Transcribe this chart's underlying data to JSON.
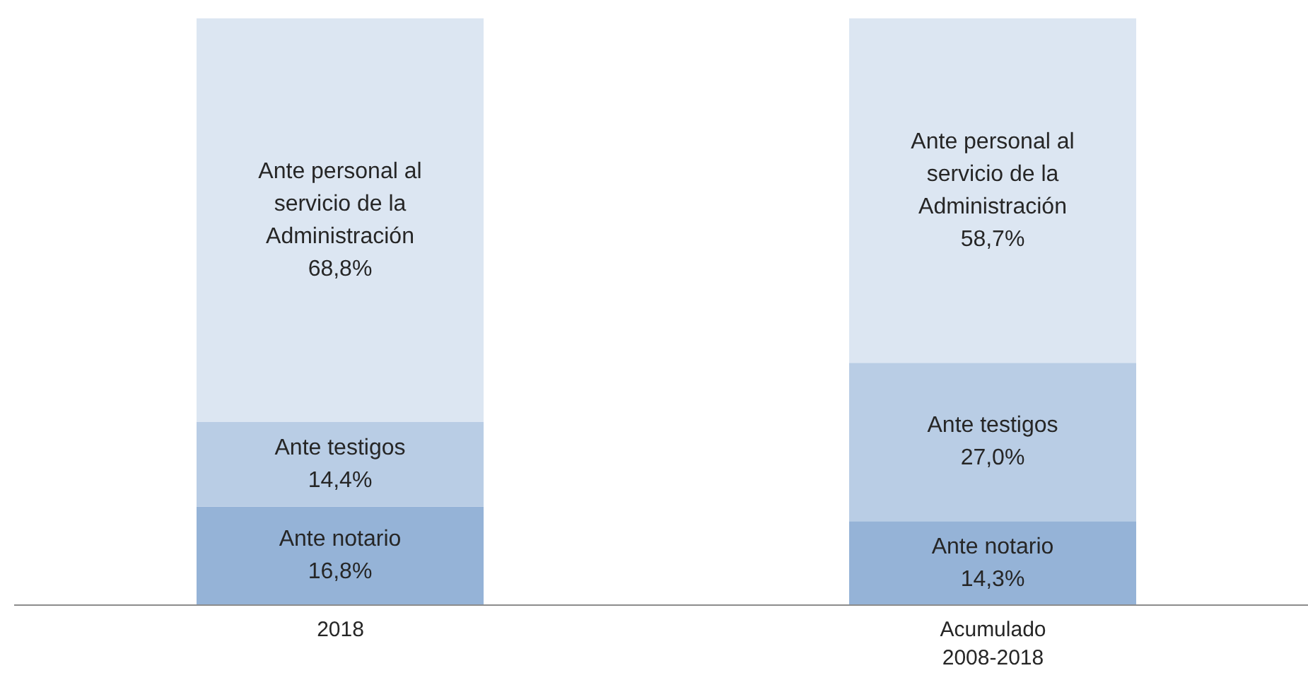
{
  "chart_data": {
    "type": "bar",
    "stacked": true,
    "categories": [
      "2018",
      "Acumulado 2008-2018"
    ],
    "series": [
      {
        "name": "Ante notario",
        "color": "#95b3d7",
        "values": [
          16.8,
          14.3
        ],
        "value_labels": [
          "16,8%",
          "14,3%"
        ]
      },
      {
        "name": "Ante testigos",
        "color": "#b9cde5",
        "values": [
          14.4,
          27.0
        ],
        "value_labels": [
          "14,4%",
          "27,0%"
        ]
      },
      {
        "name": "Ante personal al servicio de la Administración",
        "color": "#dce6f2",
        "values": [
          68.8,
          58.7
        ],
        "value_labels": [
          "68,8%",
          "58,7%"
        ]
      }
    ]
  }
}
